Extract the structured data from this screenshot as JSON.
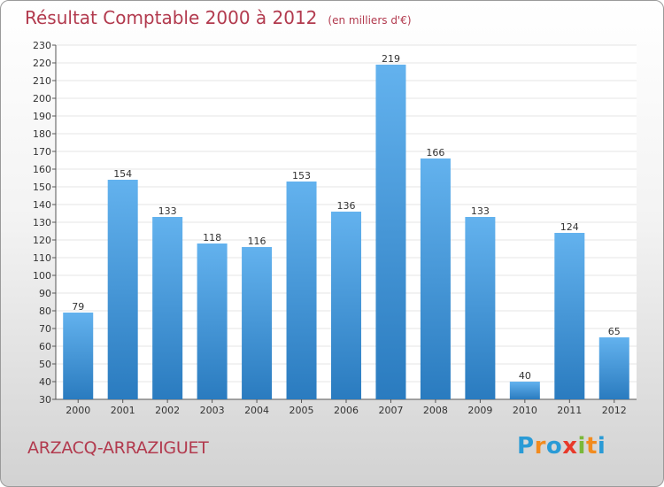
{
  "title": "Résultat Comptable 2000 à 2012",
  "unit": "(en milliers d'€)",
  "commune": "ARZACQ-ARRAZIGUET",
  "logo": {
    "letters": [
      "P",
      "r",
      "o",
      "x",
      "i",
      "t",
      "i"
    ],
    "colors": [
      "#2a9bd6",
      "#f28b1e",
      "#2a9bd6",
      "#e8392a",
      "#7ab83a",
      "#f28b1e",
      "#2a9bd6"
    ]
  },
  "colors": {
    "bar_light": "#63b2ee",
    "bar_dark": "#2a7bbf",
    "title": "#b23a4e",
    "grid": "#e4e4e4"
  },
  "chart_data": {
    "type": "bar",
    "title": "Résultat Comptable 2000 à 2012",
    "ylabel": "en milliers d'€",
    "xlabel": "",
    "categories": [
      "2000",
      "2001",
      "2002",
      "2003",
      "2004",
      "2005",
      "2006",
      "2007",
      "2008",
      "2009",
      "2010",
      "2011",
      "2012"
    ],
    "values": [
      79,
      154,
      133,
      118,
      116,
      153,
      136,
      219,
      166,
      133,
      40,
      124,
      65
    ],
    "ylim": [
      30,
      230
    ],
    "ytick_step": 10,
    "grid": true
  }
}
